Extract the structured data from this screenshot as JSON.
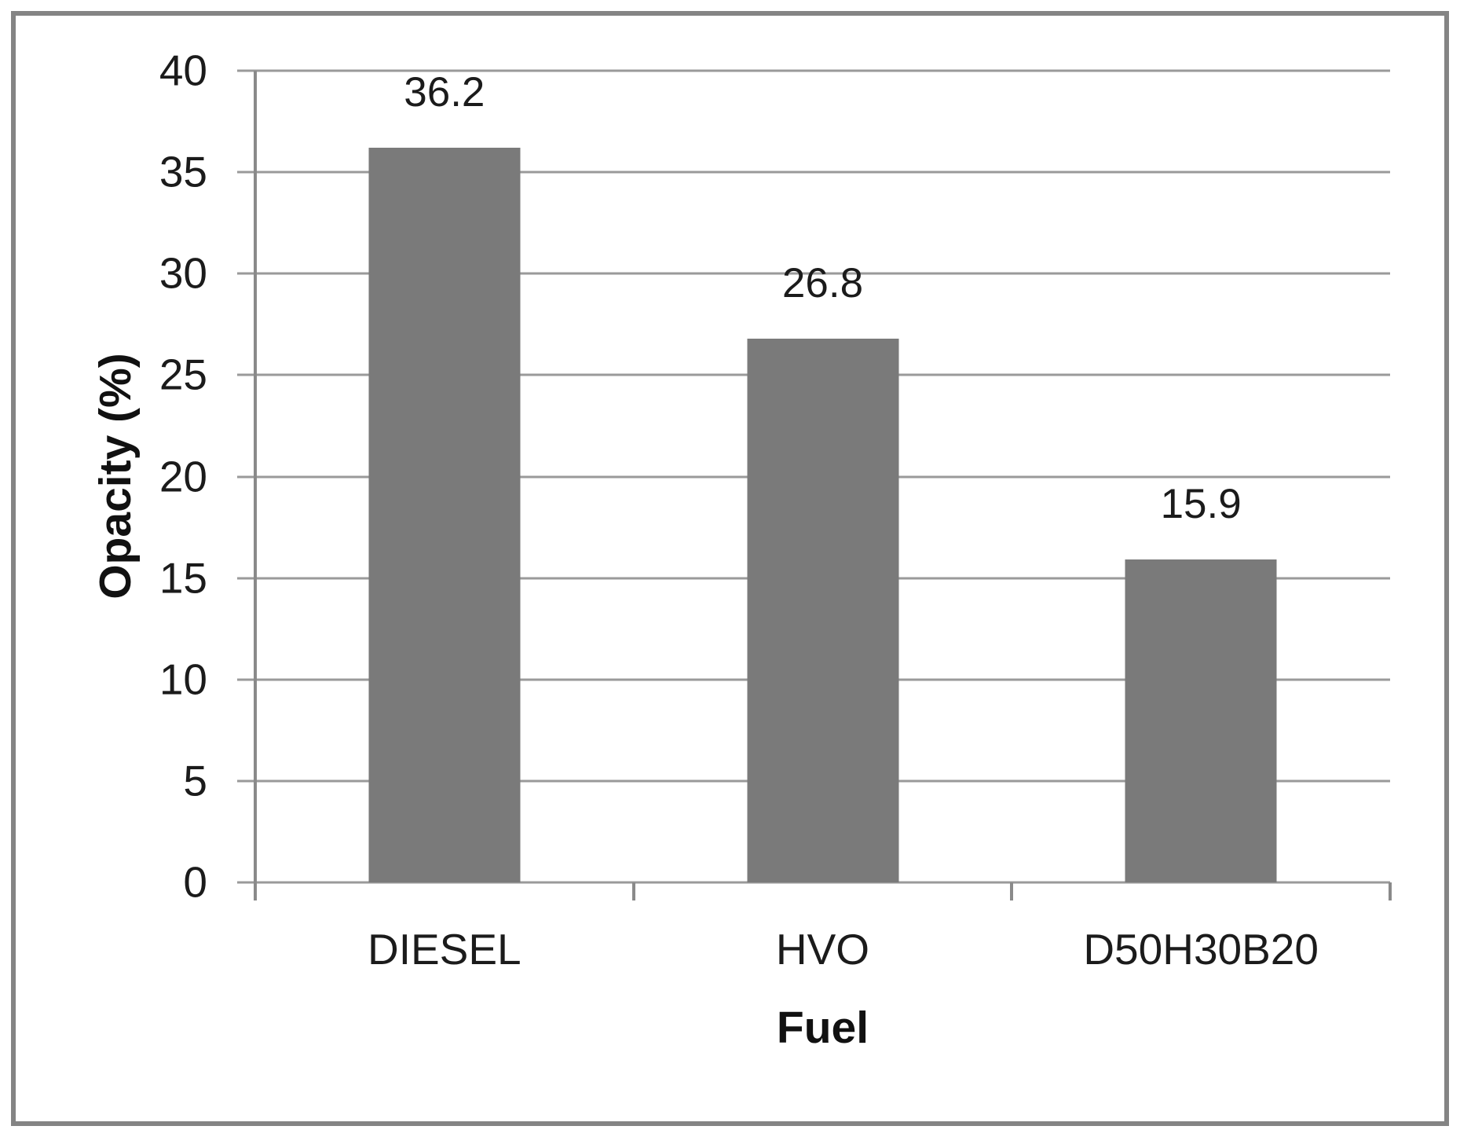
{
  "chart_data": {
    "type": "bar",
    "title": "",
    "categories": [
      "DIESEL",
      "HVO",
      "D50H30B20"
    ],
    "values": [
      36.2,
      26.8,
      15.9
    ],
    "data_labels": [
      "36.2",
      "26.8",
      "15.9"
    ],
    "xlabel": "Fuel",
    "ylabel": "Opacity (%)",
    "ylim": [
      0,
      40
    ],
    "yticks": [
      0,
      5,
      10,
      15,
      20,
      25,
      30,
      35,
      40
    ],
    "grid": "horizontal-gridlines-on",
    "legend": "none",
    "bar_color": "#7a7a7a",
    "gridline_color": "#9a9a9a",
    "axis_color": "#8a8a8a",
    "border_color": "#848484",
    "text_color": "#1b1b1b"
  }
}
